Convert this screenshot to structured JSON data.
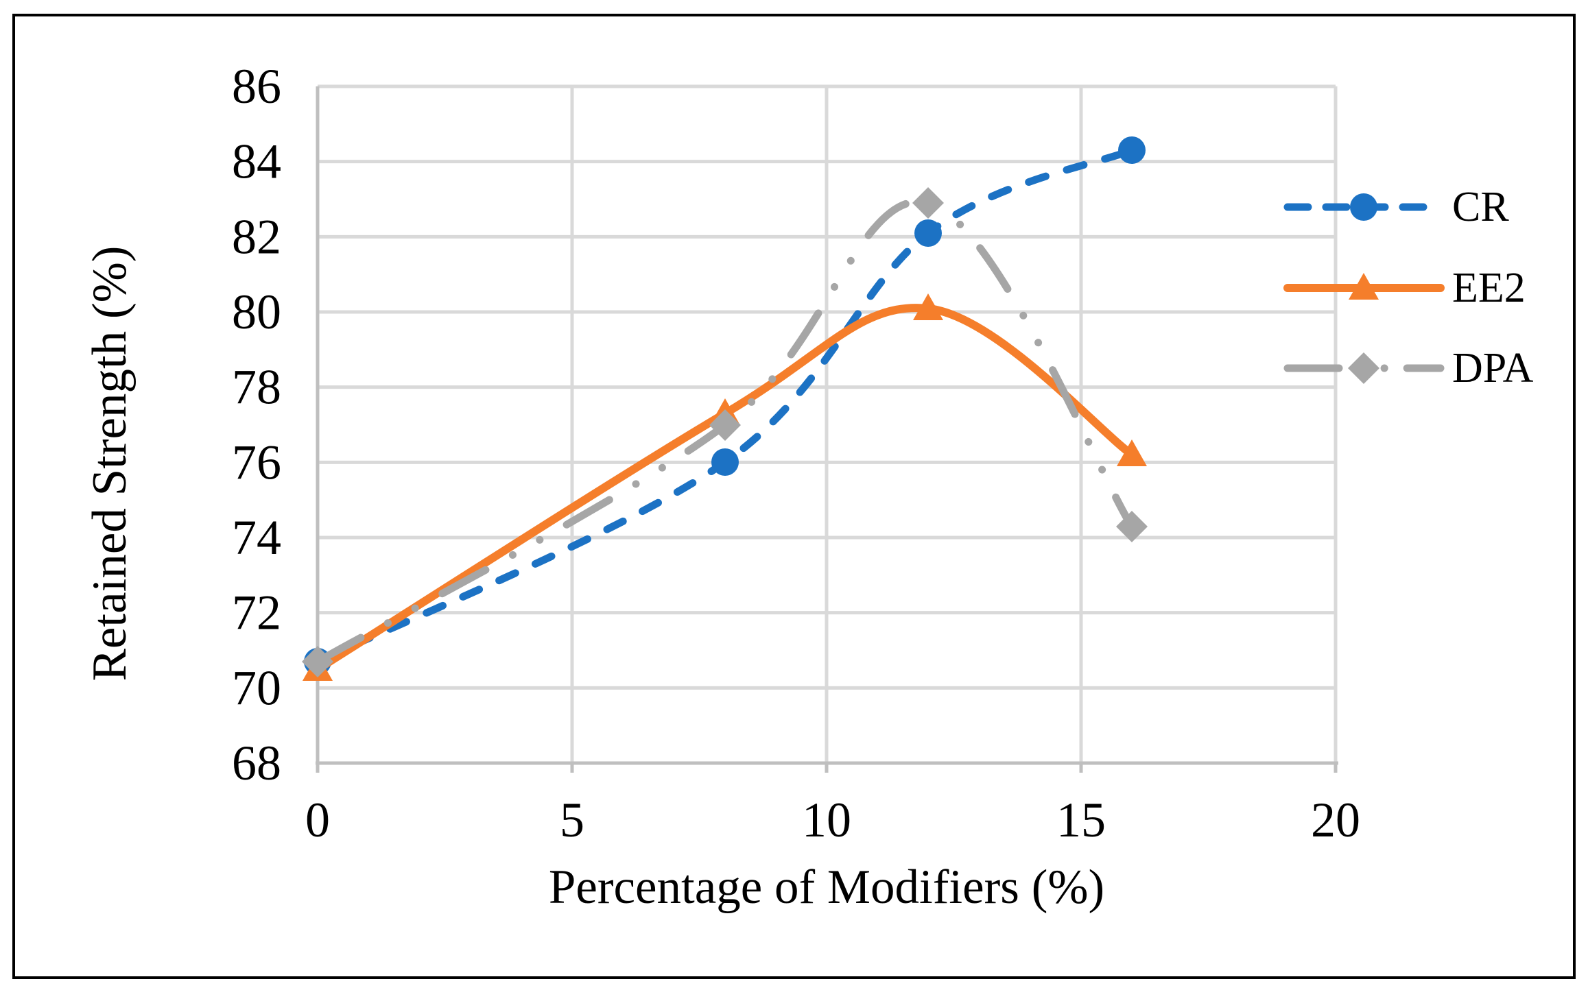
{
  "figure": {
    "background": "#FFFFFF",
    "border_color": "#000000"
  },
  "chart_data": {
    "type": "line",
    "title": "",
    "xlabel": "Percentage of Modifiers (%)",
    "ylabel": "Retained Strength (%)",
    "x": [
      0,
      8,
      12,
      16
    ],
    "series": [
      {
        "name": "CR",
        "values": [
          70.7,
          76.0,
          82.1,
          84.3
        ],
        "color": "#1C72C4",
        "line_style": "dashed",
        "marker": "circle"
      },
      {
        "name": "EE2",
        "values": [
          70.5,
          77.3,
          80.1,
          76.2
        ],
        "color": "#F57E2B",
        "line_style": "solid",
        "marker": "triangle"
      },
      {
        "name": "DPA",
        "values": [
          70.7,
          77.0,
          82.9,
          74.3
        ],
        "color": "#A6A6A6",
        "line_style": "long-dash-dot-dot",
        "marker": "diamond"
      }
    ],
    "xlim": [
      0,
      20
    ],
    "ylim": [
      68,
      86
    ],
    "xticks": [
      0,
      5,
      10,
      15,
      20
    ],
    "yticks": [
      68,
      70,
      72,
      74,
      76,
      78,
      80,
      82,
      84,
      86
    ],
    "grid": true,
    "legend_position": "right-outside",
    "gridline_color": "#D9D9D9",
    "axis_color": "#BFBFBF",
    "text_color": "#000000"
  }
}
